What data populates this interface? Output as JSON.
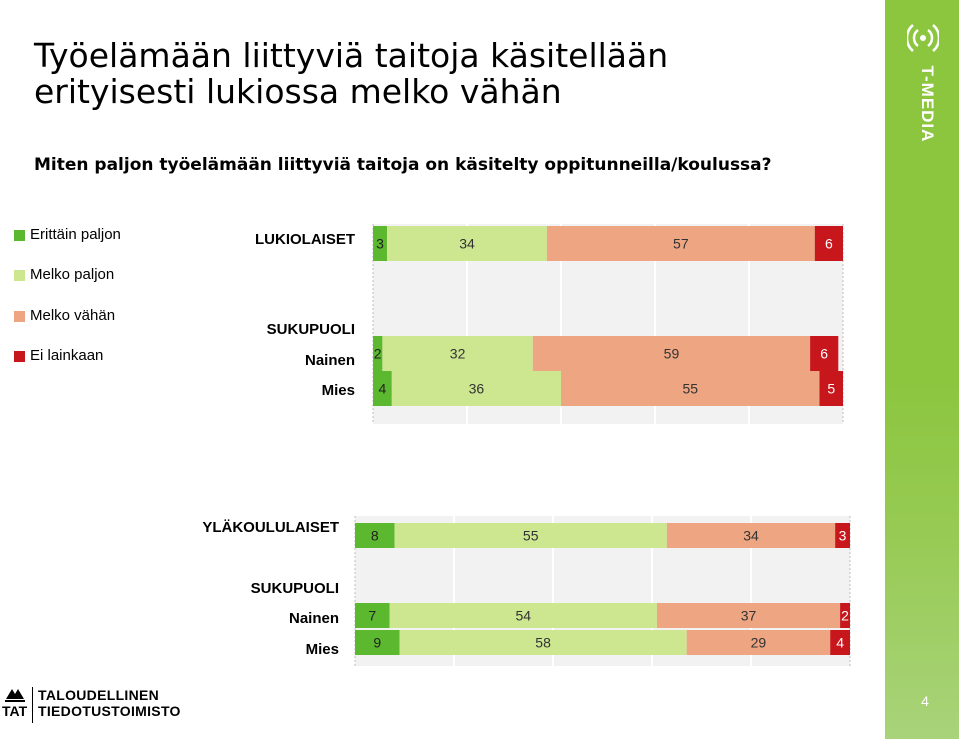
{
  "title": {
    "line1": "Työelämään liittyviä taitoja käsitellään",
    "line2": "erityisesti lukiossa melko vähän"
  },
  "question": "Miten paljon työelämään liittyviä taitoja on käsitelty oppitunneilla/koulussa?",
  "brand": {
    "name": "T-MEDIA",
    "icon": "t-media-signal-icon",
    "color": "#8cc63f"
  },
  "page_number": "4",
  "footer": {
    "short": "TAT",
    "line1": "TALOUDELLINEN",
    "line2": "TIEDOTUSTOIMISTO",
    "icon": "tat-bird-icon"
  },
  "legend": [
    {
      "label": "Erittäin paljon",
      "color": "#5cb82e"
    },
    {
      "label": "Melko paljon",
      "color": "#cde791"
    },
    {
      "label": "Melko vähän",
      "color": "#eda582"
    },
    {
      "label": "Ei lainkaan",
      "color": "#c8161d"
    }
  ],
  "chart_data": [
    {
      "type": "bar",
      "orientation": "horizontal",
      "stacked": true,
      "categories": [
        "LUKIOLAISET",
        "Nainen",
        "Mies"
      ],
      "group_label": "SUKUPUOLI",
      "series": [
        {
          "name": "Erittäin paljon",
          "values": [
            3,
            2,
            4
          ]
        },
        {
          "name": "Melko paljon",
          "values": [
            34,
            32,
            36
          ]
        },
        {
          "name": "Melko vähän",
          "values": [
            57,
            59,
            55
          ]
        },
        {
          "name": "Ei lainkaan",
          "values": [
            6,
            6,
            5
          ]
        }
      ],
      "xlim": [
        0,
        100
      ],
      "grid": true
    },
    {
      "type": "bar",
      "orientation": "horizontal",
      "stacked": true,
      "categories": [
        "YLÄKOULULAISET",
        "Nainen",
        "Mies"
      ],
      "group_label": "SUKUPUOLI",
      "series": [
        {
          "name": "Erittäin paljon",
          "values": [
            8,
            7,
            9
          ]
        },
        {
          "name": "Melko paljon",
          "values": [
            55,
            54,
            58
          ]
        },
        {
          "name": "Melko vähän",
          "values": [
            34,
            37,
            29
          ]
        },
        {
          "name": "Ei lainkaan",
          "values": [
            3,
            2,
            4
          ]
        }
      ],
      "xlim": [
        0,
        100
      ],
      "grid": true
    }
  ]
}
